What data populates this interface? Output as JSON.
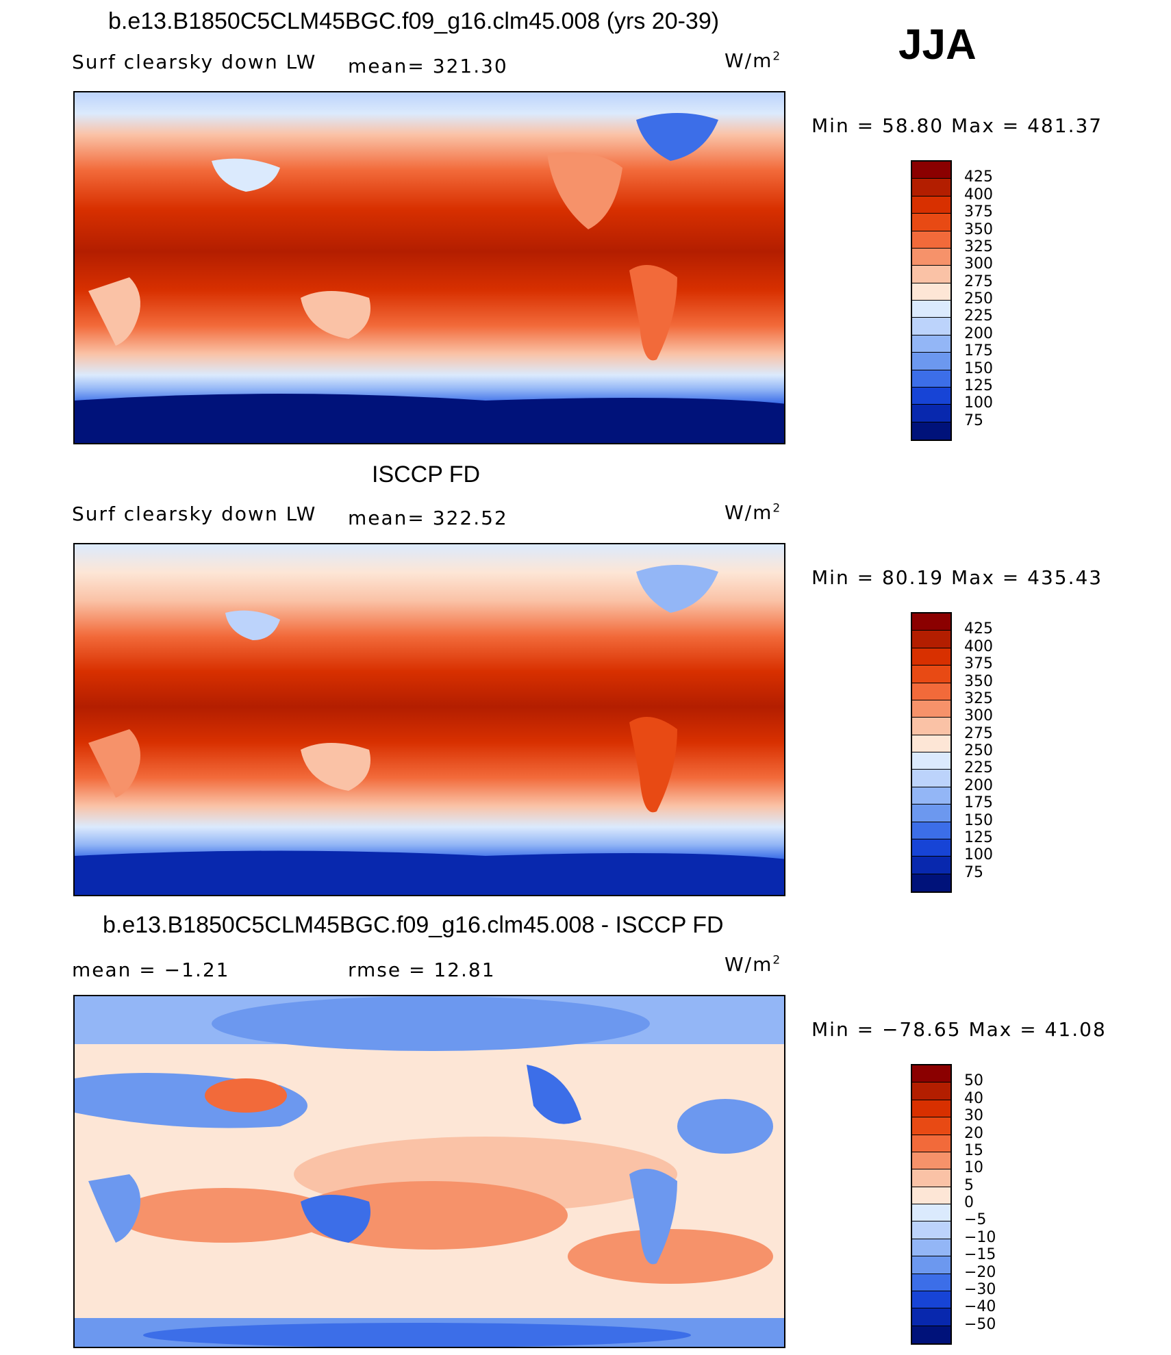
{
  "season": "JJA",
  "panels": [
    {
      "title": "b.e13.B1850C5CLM45BGC.f09_g16.clm45.008 (yrs 20-39)",
      "variable": "Surf clearsky down LW",
      "stat": "mean= 321.30",
      "units": "W/m",
      "units_sup": "2",
      "minmax": "Min =   58.80 Max = 481.37",
      "colorbar": {
        "levels": [
          "425",
          "400",
          "375",
          "350",
          "325",
          "300",
          "275",
          "250",
          "225",
          "200",
          "175",
          "150",
          "125",
          "100",
          "75"
        ],
        "colors": [
          "#8b0000",
          "#b31e00",
          "#d83000",
          "#e84a14",
          "#f26a3a",
          "#f6926a",
          "#fac2a6",
          "#fde6d6",
          "#dbeafd",
          "#bcd3fb",
          "#93b6f6",
          "#6c98ef",
          "#3c6ee8",
          "#1744d6",
          "#0828ae",
          "#00127a"
        ]
      }
    },
    {
      "title": "ISCCP FD",
      "variable": "Surf clearsky down LW",
      "stat": "mean= 322.52",
      "units": "W/m",
      "units_sup": "2",
      "minmax": "Min =   80.19 Max = 435.43",
      "colorbar": {
        "levels": [
          "425",
          "400",
          "375",
          "350",
          "325",
          "300",
          "275",
          "250",
          "225",
          "200",
          "175",
          "150",
          "125",
          "100",
          "75"
        ],
        "colors": [
          "#8b0000",
          "#b31e00",
          "#d83000",
          "#e84a14",
          "#f26a3a",
          "#f6926a",
          "#fac2a6",
          "#fde6d6",
          "#dbeafd",
          "#bcd3fb",
          "#93b6f6",
          "#6c98ef",
          "#3c6ee8",
          "#1744d6",
          "#0828ae",
          "#00127a"
        ]
      }
    },
    {
      "title": "b.e13.B1850C5CLM45BGC.f09_g16.clm45.008 - ISCCP FD",
      "stat_left": "mean =   −1.21",
      "stat_right": "rmse =   12.81",
      "units": "W/m",
      "units_sup": "2",
      "minmax": "Min = −78.65 Max =   41.08",
      "colorbar": {
        "levels": [
          "50",
          "40",
          "30",
          "20",
          "15",
          "10",
          "5",
          "0",
          "−5",
          "−10",
          "−15",
          "−20",
          "−30",
          "−40",
          "−50"
        ],
        "colors": [
          "#8b0000",
          "#b31e00",
          "#d83000",
          "#e84a14",
          "#f26a3a",
          "#f6926a",
          "#fac2a6",
          "#fde6d6",
          "#dbeafd",
          "#bcd3fb",
          "#93b6f6",
          "#6c98ef",
          "#3c6ee8",
          "#1744d6",
          "#0828ae",
          "#00127a"
        ]
      }
    }
  ]
}
